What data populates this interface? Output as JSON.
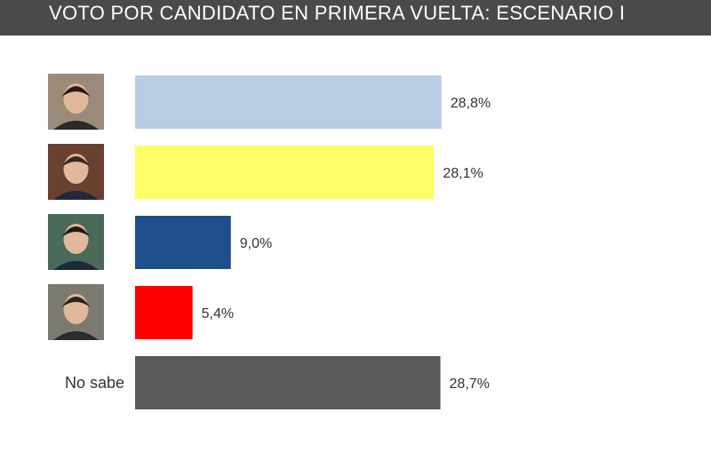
{
  "header": {
    "title": "VOTO POR CANDIDATO EN PRIMERA VUELTA: ESCENARIO I"
  },
  "chart_data": {
    "type": "bar",
    "orientation": "horizontal",
    "title": "VOTO POR CANDIDATO EN PRIMERA VUELTA: ESCENARIO I",
    "categories": [
      "",
      "",
      "",
      "",
      "No sabe"
    ],
    "category_icons": [
      "candidate-1-photo",
      "candidate-2-photo",
      "candidate-3-photo",
      "candidate-4-photo",
      ""
    ],
    "values": [
      28.8,
      28.1,
      9.0,
      5.4,
      28.7
    ],
    "value_labels": [
      "28,8%",
      "28,1%",
      "9,0%",
      "5,4%",
      "28,7%"
    ],
    "bar_colors": [
      "#b8cce4",
      "#ffff66",
      "#1f4e8c",
      "#ff0000",
      "#595959"
    ],
    "xlim": [
      0,
      30
    ],
    "grid": false,
    "legend": "none"
  }
}
